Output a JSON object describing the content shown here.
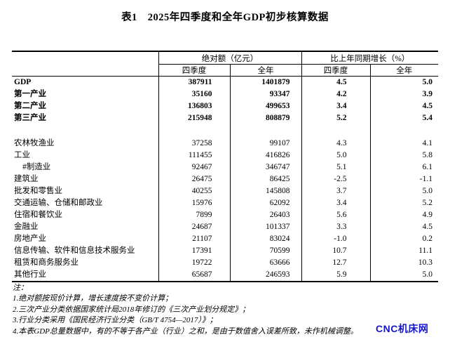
{
  "page": {
    "title": "表1　2025年四季度和全年GDP初步核算数据"
  },
  "table": {
    "group_headers": {
      "absolute": "绝对额（亿元）",
      "growth": "比上年同期增长（%）"
    },
    "sub_headers": [
      "四季度",
      "全年",
      "四季度",
      "全年"
    ],
    "rows": [
      {
        "label": "GDP",
        "q4_abs": "387911",
        "year_abs": "1401879",
        "q4_growth": "4.5",
        "year_growth": "5.0"
      },
      {
        "label": "第一产业",
        "q4_abs": "35160",
        "year_abs": "93347",
        "q4_growth": "4.2",
        "year_growth": "3.9"
      },
      {
        "label": "第二产业",
        "q4_abs": "136803",
        "year_abs": "499653",
        "q4_growth": "3.4",
        "year_growth": "4.5"
      },
      {
        "label": "第三产业",
        "q4_abs": "215948",
        "year_abs": "808879",
        "q4_growth": "5.2",
        "year_growth": "5.4"
      },
      {
        "label": "农林牧渔业",
        "q4_abs": "37258",
        "year_abs": "99107",
        "q4_growth": "4.3",
        "year_growth": "4.1"
      },
      {
        "label": "工业",
        "q4_abs": "111455",
        "year_abs": "416826",
        "q4_growth": "5.0",
        "year_growth": "5.8"
      },
      {
        "label": "#制造业",
        "q4_abs": "92467",
        "year_abs": "346747",
        "q4_growth": "5.1",
        "year_growth": "6.1"
      },
      {
        "label": "建筑业",
        "q4_abs": "26475",
        "year_abs": "86425",
        "q4_growth": "-2.5",
        "year_growth": "-1.1"
      },
      {
        "label": "批发和零售业",
        "q4_abs": "40255",
        "year_abs": "145808",
        "q4_growth": "3.7",
        "year_growth": "5.0"
      },
      {
        "label": "交通运输、仓储和邮政业",
        "q4_abs": "15976",
        "year_abs": "62092",
        "q4_growth": "3.4",
        "year_growth": "5.2"
      },
      {
        "label": "住宿和餐饮业",
        "q4_abs": "7899",
        "year_abs": "26403",
        "q4_growth": "5.6",
        "year_growth": "4.9"
      },
      {
        "label": "金融业",
        "q4_abs": "24687",
        "year_abs": "101337",
        "q4_growth": "3.3",
        "year_growth": "4.5"
      },
      {
        "label": "房地产业",
        "q4_abs": "21107",
        "year_abs": "83024",
        "q4_growth": "-1.0",
        "year_growth": "0.2"
      },
      {
        "label": "信息传输、软件和信息技术服务业",
        "q4_abs": "17391",
        "year_abs": "70599",
        "q4_growth": "10.7",
        "year_growth": "11.1"
      },
      {
        "label": "租赁和商务服务业",
        "q4_abs": "19722",
        "year_abs": "63666",
        "q4_growth": "12.7",
        "year_growth": "10.3"
      },
      {
        "label": "其他行业",
        "q4_abs": "65687",
        "year_abs": "246593",
        "q4_growth": "5.9",
        "year_growth": "5.0"
      }
    ]
  },
  "notes": {
    "heading": "注：",
    "items": [
      "1.绝对额按现价计算，增长速度按不变价计算；",
      "2.三次产业分类依据国家统计局2018年修订的《三次产业划分规定》；",
      "3.行业分类采用《国民经济行业分类（GB/T 4754—2017）》；",
      "4.本表GDP总量数据中，有的不等于各产业（行业）之和，是由于数值舍入误差所致，未作机械调整。"
    ]
  },
  "watermark": {
    "text": "CNC机床网",
    "color": "#1515cc"
  }
}
